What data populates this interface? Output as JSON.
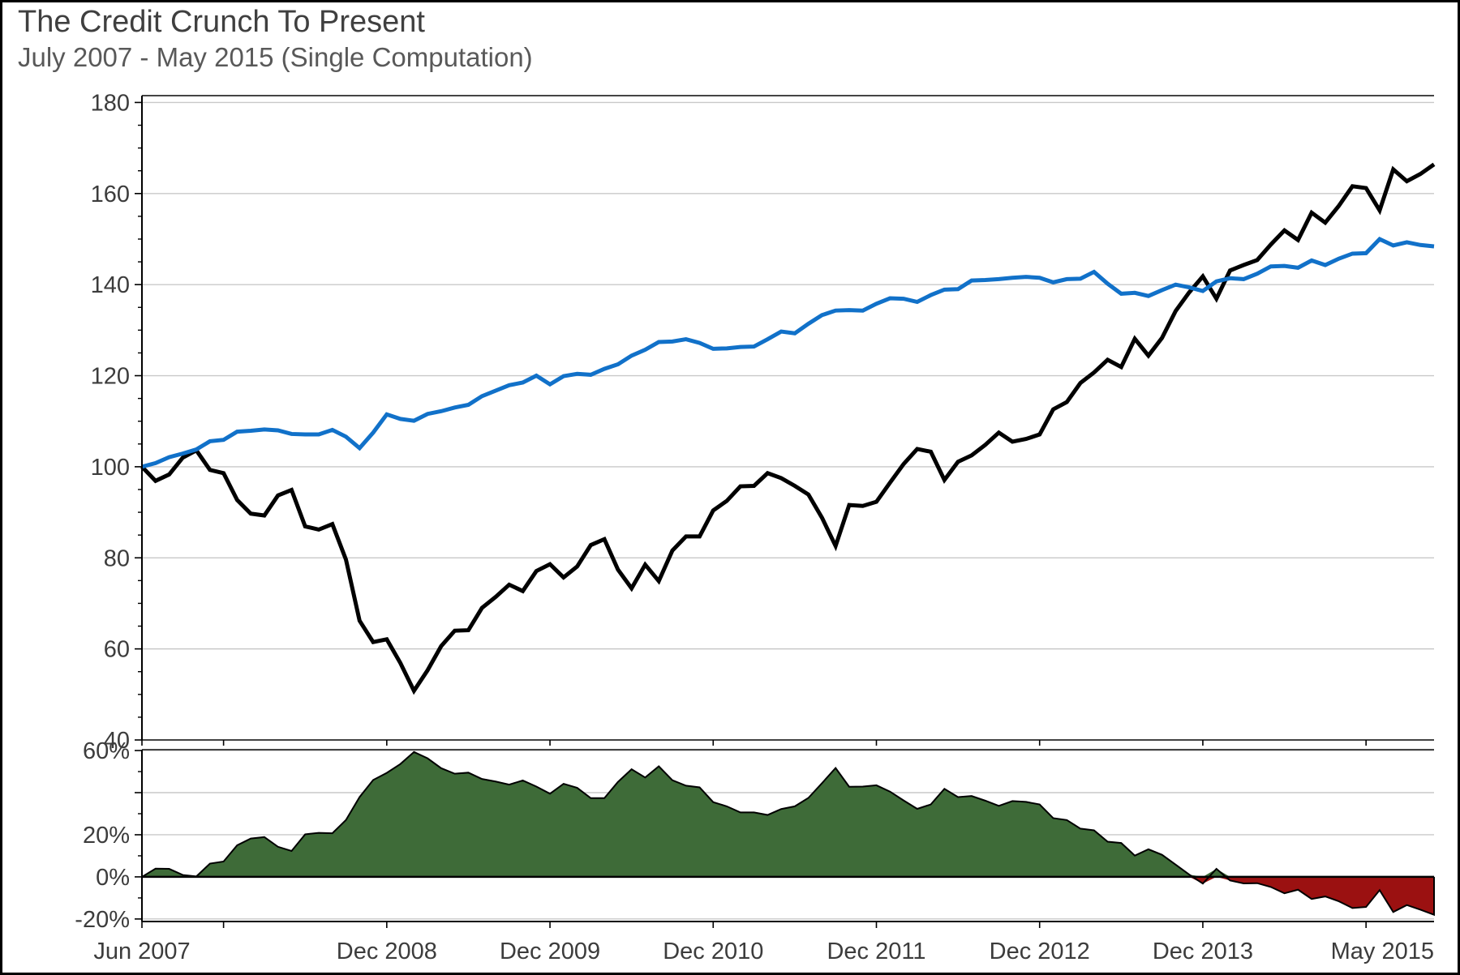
{
  "header": {
    "title": "The Credit Crunch To Present",
    "subtitle": "July 2007 - May 2015 (Single Computation)"
  },
  "chart_data": {
    "type": "line",
    "title": "The Credit Crunch To Present",
    "subtitle": "July 2007 - May 2015 (Single Computation)",
    "x": {
      "n_points": 96,
      "start_label": "Jun 2007",
      "end_label": "May 2015",
      "tick_months": [
        0,
        6,
        18,
        30,
        42,
        54,
        66,
        78,
        90
      ],
      "axis_labels": [
        {
          "label": "Jun 2007",
          "month": 0,
          "anchor": "middle"
        },
        {
          "label": "Dec 2008",
          "month": 18,
          "anchor": "middle"
        },
        {
          "label": "Dec 2009",
          "month": 30,
          "anchor": "middle"
        },
        {
          "label": "Dec 2010",
          "month": 42,
          "anchor": "middle"
        },
        {
          "label": "Dec 2011",
          "month": 54,
          "anchor": "middle"
        },
        {
          "label": "Dec 2012",
          "month": 66,
          "anchor": "middle"
        },
        {
          "label": "Dec 2013",
          "month": 78,
          "anchor": "middle"
        },
        {
          "label": "May 2015",
          "month": 95,
          "anchor": "end"
        }
      ]
    },
    "top_panel": {
      "ylim": [
        40,
        181.5
      ],
      "ytick_major": [
        40,
        60,
        80,
        100,
        120,
        140,
        160,
        180
      ],
      "ytick_minor_step": 5,
      "series": [
        {
          "id": "black-line",
          "color": "#000000",
          "width": 5,
          "values": [
            100,
            96.9,
            98.3,
            102,
            103.6,
            99.3,
            98.6,
            92.7,
            89.7,
            89.3,
            93.7,
            94.9,
            86.9,
            86.2,
            87.4,
            79.6,
            66.2,
            61.5,
            62.1,
            56.9,
            50.8,
            55.3,
            60.6,
            64,
            64.1,
            69,
            71.4,
            74.1,
            72.7,
            77.1,
            78.6,
            75.7,
            78.1,
            82.8,
            84.1,
            77.4,
            73.3,
            78.5,
            74.9,
            81.6,
            84.7,
            84.7,
            90.4,
            92.5,
            95.7,
            95.8,
            98.6,
            97.5,
            95.8,
            93.9,
            88.8,
            82.6,
            91.6,
            91.4,
            92.3,
            96.5,
            100.6,
            103.9,
            103.3,
            97.1,
            101.1,
            102.5,
            104.8,
            107.5,
            105.5,
            106.1,
            107.1,
            112.6,
            114.2,
            118.4,
            120.7,
            123.5,
            121.9,
            128.1,
            124.4,
            128.3,
            134.2,
            138.3,
            141.8,
            136.9,
            143.1,
            144.3,
            145.4,
            148.8,
            151.9,
            149.8,
            155.8,
            153.6,
            157.3,
            161.6,
            161.2,
            156.3,
            165.3,
            162.7,
            164.3,
            166.4
          ]
        },
        {
          "id": "blue-line",
          "color": "#1171c9",
          "width": 5,
          "values": [
            100,
            100.8,
            102.1,
            102.9,
            103.8,
            105.6,
            105.9,
            107.7,
            107.9,
            108.2,
            108,
            107.2,
            107.1,
            107.1,
            108.1,
            106.6,
            104.1,
            107.5,
            111.5,
            110.5,
            110.1,
            111.6,
            112.2,
            113,
            113.6,
            115.5,
            116.7,
            117.9,
            118.5,
            120,
            118.1,
            119.9,
            120.4,
            120.2,
            121.5,
            122.5,
            124.4,
            125.7,
            127.4,
            127.5,
            128,
            127.2,
            125.9,
            126,
            126.3,
            126.4,
            128,
            129.7,
            129.3,
            131.4,
            133.3,
            134.3,
            134.4,
            134.3,
            135.8,
            137,
            136.9,
            136.2,
            137.7,
            138.9,
            139,
            140.9,
            141,
            141.2,
            141.5,
            141.7,
            141.5,
            140.5,
            141.2,
            141.3,
            142.8,
            140.2,
            138,
            138.2,
            137.5,
            138.8,
            140,
            139.4,
            138.6,
            140.7,
            141.4,
            141.2,
            142.4,
            144,
            144.1,
            143.7,
            145.3,
            144.3,
            145.7,
            146.8,
            146.9,
            150,
            148.6,
            149.3,
            148.7,
            148.4
          ]
        }
      ]
    },
    "bottom_panel": {
      "ylim": [
        -21.2,
        60.4
      ],
      "ytick_major": [
        -20,
        0,
        20,
        40,
        60
      ],
      "ytick_labeled": [
        -20,
        0,
        20,
        60
      ],
      "ytick_minor_step": 10,
      "label_suffix": "%",
      "area": {
        "id": "relative-difference-area",
        "positive_color": "#3e6b38",
        "negative_color": "#9b1111",
        "outline_color": "#000000",
        "values": [
          0,
          3.9,
          3.8,
          0.9,
          0.2,
          6.3,
          7.3,
          15,
          18.2,
          18.9,
          14.3,
          12.3,
          20.2,
          20.9,
          20.7,
          27,
          37.9,
          46,
          49.4,
          53.6,
          59.3,
          56.3,
          51.6,
          49,
          49.5,
          46.5,
          45.3,
          43.8,
          45.8,
          42.9,
          39.5,
          44.2,
          42.3,
          37.4,
          37.4,
          45.1,
          51.1,
          47.2,
          52.5,
          45.9,
          43.3,
          42.5,
          35.5,
          33.5,
          30.6,
          30.6,
          29.4,
          32.2,
          33.5,
          37.5,
          44.5,
          51.7,
          42.8,
          42.9,
          43.5,
          40.5,
          36.3,
          32.3,
          34.4,
          41.8,
          37.9,
          38.4,
          36.2,
          33.7,
          36,
          35.6,
          34.4,
          27.9,
          27,
          22.9,
          22.1,
          16.7,
          16.1,
          10.1,
          13.1,
          10.5,
          5.8,
          1.1,
          -3.2,
          3.8,
          -1.7,
          -3.1,
          -3,
          -4.8,
          -7.8,
          -6.1,
          -10.5,
          -9.3,
          -11.6,
          -14.8,
          -14.3,
          -6.3,
          -16.7,
          -13.4,
          -15.6,
          -18
        ]
      }
    },
    "style": {
      "gridline_color": "#c9c9c9",
      "panel_border_color": "#444444",
      "axis_color": "#000000",
      "tick_label_color": "#3c3c3c",
      "axis_font_size": 29
    },
    "layout_hints": {
      "grid": "on",
      "legend": "none"
    }
  }
}
